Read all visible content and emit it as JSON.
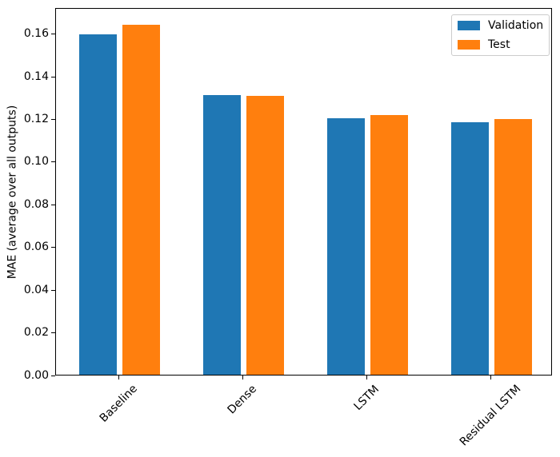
{
  "chart_data": {
    "type": "bar",
    "title": "",
    "xlabel": "",
    "ylabel": "MAE (average over all outputs)",
    "categories": [
      "Baseline",
      "Dense",
      "LSTM",
      "Residual LSTM"
    ],
    "series": [
      {
        "name": "Validation",
        "color": "#1f77b4",
        "values": [
          0.1594,
          0.1311,
          0.1201,
          0.1183
        ]
      },
      {
        "name": "Test",
        "color": "#ff7f0e",
        "values": [
          0.1641,
          0.1308,
          0.1217,
          0.1197
        ]
      }
    ],
    "y_ticks": [
      "0.00",
      "0.02",
      "0.04",
      "0.06",
      "0.08",
      "0.10",
      "0.12",
      "0.14",
      "0.16"
    ],
    "ylim": [
      0,
      0.1722
    ],
    "grid": false,
    "legend_position": "upper right",
    "x_tick_rotation": 45,
    "bar_width_ratio": 0.3,
    "colors": {
      "axes": "#000000",
      "background": "#ffffff",
      "legend_border": "#cccccc"
    }
  }
}
